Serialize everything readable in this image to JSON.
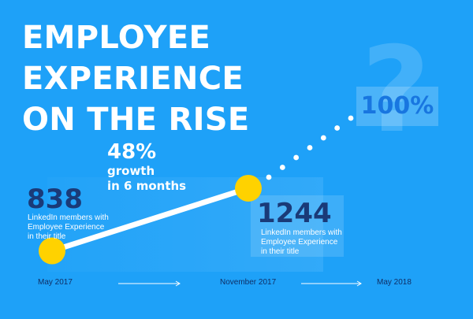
{
  "title_lines": [
    "EMPLOYEE EXPERIENCE",
    "ON THE RISE"
  ],
  "colors": {
    "background": "#1ea1f8",
    "line": "#ffffff",
    "marker": "#ffd200",
    "value_text": "#1a3a78",
    "target_text": "#1876e0"
  },
  "chart_data": {
    "type": "line",
    "title": "EMPLOYEE EXPERIENCE ON THE RISE",
    "x": [
      "May 2017",
      "November 2017",
      "May 2018"
    ],
    "series": [
      {
        "values": [
          838,
          1244,
          null
        ]
      }
    ],
    "projection": {
      "style": "dotted",
      "from": "November 2017",
      "to": "May 2018",
      "label": "100%",
      "symbol": "?"
    },
    "annotations": [
      {
        "point": "May 2017",
        "value": "838",
        "caption": [
          "LinkedIn members with",
          "Employee Experience",
          "in their title"
        ]
      },
      {
        "point": "November 2017",
        "value": "1244",
        "caption": [
          "LinkedIn members with",
          "Employee Experience",
          "in their title"
        ]
      }
    ],
    "growth": {
      "value": "48%",
      "text_lines": [
        "growth",
        "in 6 months"
      ]
    },
    "grid": false,
    "legend": "none"
  }
}
